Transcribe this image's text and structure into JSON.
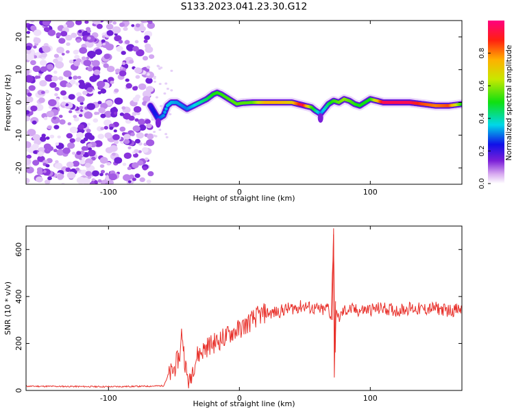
{
  "title": "S133.2023.041.23.30.G12",
  "chart_data": [
    {
      "type": "heatmap",
      "xlabel": "Height of straight line (km)",
      "ylabel": "Frequency (Hz)",
      "xlim": [
        -163,
        170
      ],
      "ylim": [
        -25,
        25
      ],
      "x_ticks": [
        -100,
        0,
        100
      ],
      "y_ticks": [
        -20,
        -10,
        0,
        10,
        20
      ],
      "colorbar": {
        "label": "Normalized spectral amplitude",
        "range": [
          0,
          1
        ],
        "ticks": [
          0.0,
          0.2,
          0.4,
          0.6,
          0.8
        ]
      },
      "noise_region_x": [
        -163,
        -67
      ],
      "ridge_line": {
        "x": [
          -68,
          -65,
          -62,
          -58,
          -55,
          -52,
          -48,
          -44,
          -40,
          -35,
          -30,
          -25,
          -20,
          -17,
          -14,
          -10,
          -6,
          -2,
          2,
          10,
          20,
          30,
          40,
          45,
          50,
          55,
          58,
          62,
          65,
          68,
          72,
          76,
          80,
          84,
          88,
          92,
          96,
          100,
          105,
          110,
          120,
          130,
          140,
          150,
          160,
          170
        ],
        "y": [
          -1,
          -3,
          -5,
          -4,
          -1,
          0,
          0,
          -1,
          -2,
          -1,
          0,
          1,
          2.5,
          3,
          2.5,
          1.5,
          0.5,
          -0.5,
          -0.2,
          0,
          0,
          0,
          0,
          -0.5,
          -1,
          -1.5,
          -2.5,
          -3.5,
          -2,
          -0.5,
          0.5,
          0,
          1,
          0.5,
          -0.5,
          -1,
          0,
          1,
          0.5,
          0,
          0,
          0,
          -0.5,
          -1,
          -1,
          -0.5
        ]
      },
      "ridge_amplitude": {
        "x": [
          -68,
          -55,
          -40,
          -20,
          -5,
          10,
          20,
          30,
          40,
          48,
          55,
          62,
          70,
          80,
          90,
          100,
          105,
          110,
          120,
          130,
          140,
          150,
          160,
          170
        ],
        "v": [
          0.2,
          0.35,
          0.3,
          0.5,
          0.55,
          0.55,
          0.75,
          0.75,
          0.7,
          0.95,
          0.55,
          0.3,
          0.5,
          0.6,
          0.5,
          0.5,
          0.7,
          0.95,
          0.95,
          0.95,
          0.85,
          0.8,
          0.85,
          0.5
        ]
      }
    },
    {
      "type": "line",
      "xlabel": "Height of straight line (km)",
      "ylabel": "SNR (10 * v/v)",
      "xlim": [
        -163,
        170
      ],
      "ylim": [
        0,
        700
      ],
      "x_ticks": [
        -100,
        0,
        100
      ],
      "y_ticks": [
        0,
        200,
        400,
        600
      ],
      "series": [
        {
          "color": "#e8302a",
          "x": [
            -163,
            -130,
            -100,
            -70,
            -58,
            -55,
            -50,
            -45,
            -44,
            -42,
            -40,
            -38,
            -36,
            -32,
            -28,
            -24,
            -20,
            -15,
            -10,
            -5,
            0,
            5,
            10,
            15,
            20,
            25,
            30,
            35,
            40,
            45,
            50,
            55,
            60,
            65,
            68,
            70,
            71,
            72,
            73,
            74,
            75,
            80,
            85,
            90,
            100,
            110,
            120,
            130,
            140,
            150,
            160,
            170
          ],
          "y": [
            18,
            17,
            16,
            18,
            20,
            55,
            90,
            160,
            260,
            140,
            60,
            30,
            90,
            150,
            170,
            190,
            200,
            215,
            230,
            250,
            260,
            280,
            300,
            320,
            330,
            330,
            335,
            345,
            350,
            355,
            360,
            350,
            345,
            340,
            360,
            300,
            480,
            690,
            60,
            380,
            300,
            340,
            345,
            340,
            345,
            350,
            340,
            350,
            345,
            350,
            340,
            345
          ]
        }
      ]
    }
  ]
}
